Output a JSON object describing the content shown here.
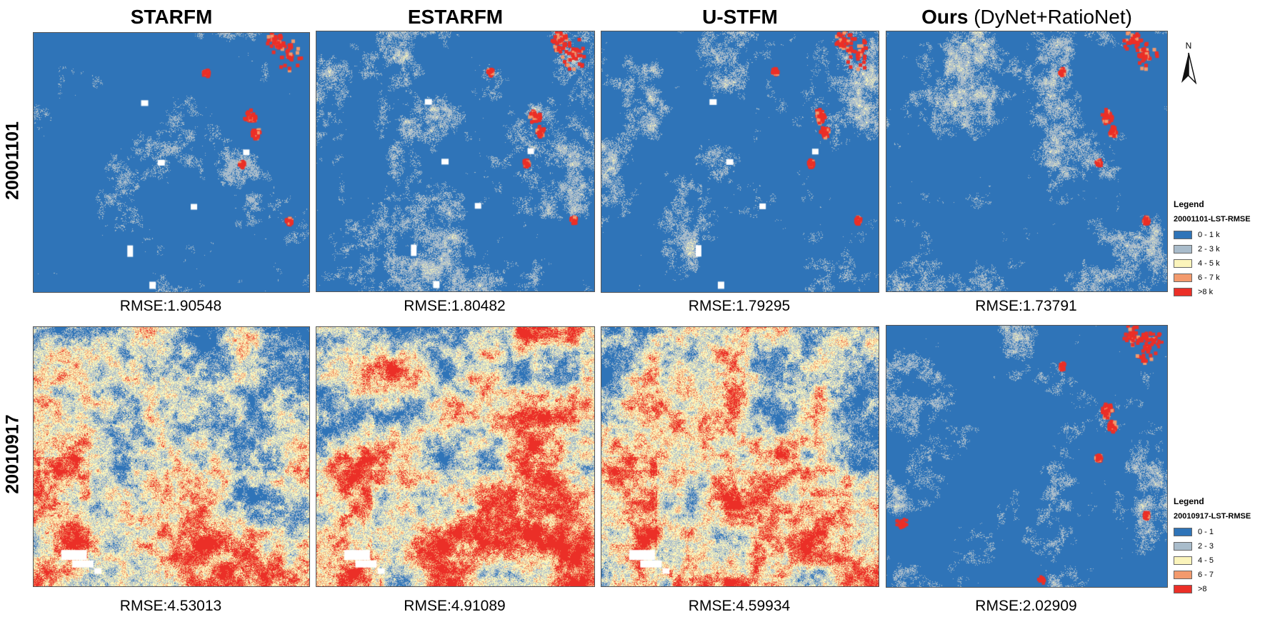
{
  "columns": [
    {
      "title": "STARFM",
      "subtitle": ""
    },
    {
      "title": "ESTARFM",
      "subtitle": ""
    },
    {
      "title": "U-STFM",
      "subtitle": ""
    },
    {
      "title": "Ours",
      "subtitle": " (DyNet+RatioNet)"
    }
  ],
  "rows": [
    {
      "label": "20001101",
      "rmse": [
        "RMSE:1.90548",
        "RMSE:1.80482",
        "RMSE:1.79295",
        "RMSE:1.73791"
      ],
      "legend": {
        "title": "Legend",
        "subtitle": "20001101-LST-RMSE",
        "items": [
          "0 - 1 k",
          "2 - 3 k",
          "4 - 5 k",
          "6 - 7 k",
          ">8 k"
        ]
      }
    },
    {
      "label": "20010917",
      "rmse": [
        "RMSE:4.53013",
        "RMSE:4.91089",
        "RMSE:4.59934",
        "RMSE:2.02909"
      ],
      "legend": {
        "title": "Legend",
        "subtitle": "20010917-LST-RMSE",
        "items": [
          "0 - 1",
          "2 - 3",
          "4 - 5",
          "6 - 7",
          ">8"
        ]
      }
    }
  ],
  "legend_colors": [
    "#2f74b8",
    "#a9bccb",
    "#fbf4bb",
    "#f39a6d",
    "#eb2f27"
  ],
  "north_label": "N"
}
